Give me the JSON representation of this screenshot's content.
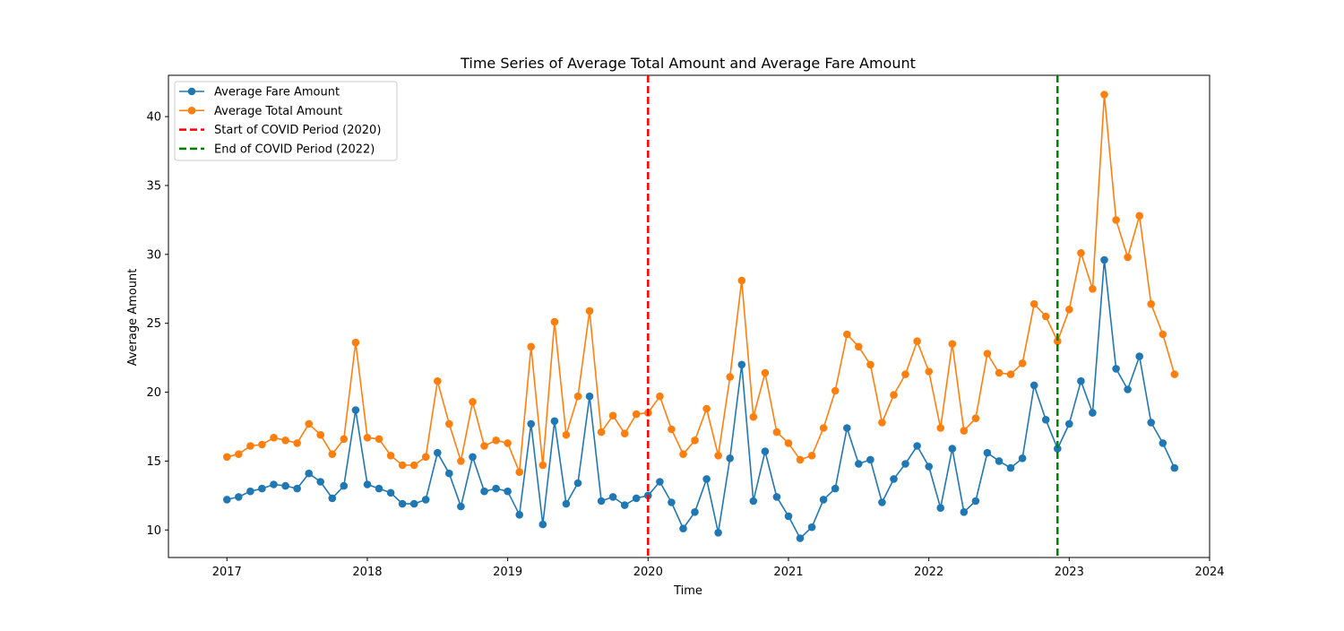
{
  "chart_data": {
    "type": "line",
    "title": "Time Series of Average Total Amount and Average Fare Amount",
    "xlabel": "Time",
    "ylabel": "Average Amount",
    "xlim": [
      "2016-08-01",
      "2024-01-01"
    ],
    "ylim": [
      8,
      43
    ],
    "x_ticks": [
      "2017",
      "2018",
      "2019",
      "2020",
      "2021",
      "2022",
      "2023",
      "2024"
    ],
    "y_ticks": [
      10,
      15,
      20,
      25,
      30,
      35,
      40
    ],
    "grid": false,
    "legend_position": "top-left",
    "x": [
      "2017-01",
      "2017-02",
      "2017-03",
      "2017-04",
      "2017-05",
      "2017-06",
      "2017-07",
      "2017-08",
      "2017-09",
      "2017-10",
      "2017-11",
      "2017-12",
      "2018-01",
      "2018-02",
      "2018-03",
      "2018-04",
      "2018-05",
      "2018-06",
      "2018-07",
      "2018-08",
      "2018-09",
      "2018-10",
      "2018-11",
      "2018-12",
      "2019-01",
      "2019-02",
      "2019-03",
      "2019-04",
      "2019-05",
      "2019-06",
      "2019-07",
      "2019-08",
      "2019-09",
      "2019-10",
      "2019-11",
      "2019-12",
      "2020-01",
      "2020-02",
      "2020-03",
      "2020-04",
      "2020-05",
      "2020-06",
      "2020-07",
      "2020-08",
      "2020-09",
      "2020-10",
      "2020-11",
      "2020-12",
      "2021-01",
      "2021-02",
      "2021-03",
      "2021-04",
      "2021-05",
      "2021-06",
      "2021-07",
      "2021-08",
      "2021-09",
      "2021-10",
      "2021-11",
      "2021-12",
      "2022-01",
      "2022-02",
      "2022-03",
      "2022-04",
      "2022-05",
      "2022-06",
      "2022-07",
      "2022-08",
      "2022-09",
      "2022-10",
      "2022-11",
      "2022-12",
      "2023-01",
      "2023-02",
      "2023-03",
      "2023-04",
      "2023-05",
      "2023-06",
      "2023-07",
      "2023-08",
      "2023-09",
      "2023-10"
    ],
    "series": [
      {
        "name": "Average Fare Amount",
        "color": "#1f77b4",
        "values": [
          12.2,
          12.4,
          12.8,
          13.0,
          13.3,
          13.2,
          13.0,
          14.1,
          13.5,
          12.3,
          13.2,
          18.7,
          13.3,
          13.0,
          12.7,
          11.9,
          11.9,
          12.2,
          15.6,
          14.1,
          11.7,
          15.3,
          12.8,
          13.0,
          12.8,
          11.1,
          17.7,
          10.4,
          17.9,
          11.9,
          13.4,
          19.7,
          12.1,
          12.4,
          11.8,
          12.3,
          12.5,
          13.5,
          12.0,
          10.1,
          11.3,
          13.7,
          9.8,
          15.2,
          22.0,
          12.1,
          15.7,
          12.4,
          11.0,
          9.4,
          10.2,
          12.2,
          13.0,
          17.4,
          14.8,
          15.1,
          12.0,
          13.7,
          14.8,
          16.1,
          14.6,
          11.6,
          15.9,
          11.3,
          12.1,
          15.6,
          15.0,
          14.5,
          15.2,
          20.5,
          18.0,
          15.9,
          17.7,
          20.8,
          18.5,
          29.6,
          21.7,
          20.2,
          22.6,
          17.8,
          16.3,
          14.5
        ]
      },
      {
        "name": "Average Total Amount",
        "color": "#ff7f0e",
        "values": [
          15.3,
          15.5,
          16.1,
          16.2,
          16.7,
          16.5,
          16.3,
          17.7,
          16.9,
          15.5,
          16.6,
          23.6,
          16.7,
          16.6,
          15.4,
          14.7,
          14.7,
          15.3,
          20.8,
          17.7,
          15.0,
          19.3,
          16.1,
          16.5,
          16.3,
          14.2,
          23.3,
          14.7,
          25.1,
          16.9,
          19.7,
          25.9,
          17.1,
          18.3,
          17.0,
          18.4,
          18.5,
          19.7,
          17.3,
          15.5,
          16.5,
          18.8,
          15.4,
          21.1,
          28.1,
          18.2,
          21.4,
          17.1,
          16.3,
          15.1,
          15.4,
          17.4,
          20.1,
          24.2,
          23.3,
          22.0,
          17.8,
          19.8,
          21.3,
          23.7,
          21.5,
          17.4,
          23.5,
          17.2,
          18.1,
          22.8,
          21.4,
          21.3,
          22.1,
          26.4,
          25.5,
          23.7,
          26.0,
          30.1,
          27.5,
          41.6,
          32.5,
          29.8,
          32.8,
          26.4,
          24.2,
          21.3
        ]
      }
    ],
    "vlines": [
      {
        "name": "Start of COVID Period (2020)",
        "x": "2020-01",
        "color": "#ff0000",
        "style": "dashed"
      },
      {
        "name": "End of COVID Period (2022)",
        "x": "2022-12",
        "color": "#008000",
        "style": "dashed"
      }
    ],
    "legend": [
      {
        "label": "Average Fare Amount",
        "color": "#1f77b4",
        "kind": "line-marker"
      },
      {
        "label": "Average Total Amount",
        "color": "#ff7f0e",
        "kind": "line-marker"
      },
      {
        "label": "Start of COVID Period (2020)",
        "color": "#ff0000",
        "kind": "dashed"
      },
      {
        "label": "End of COVID Period (2022)",
        "color": "#008000",
        "kind": "dashed"
      }
    ]
  }
}
